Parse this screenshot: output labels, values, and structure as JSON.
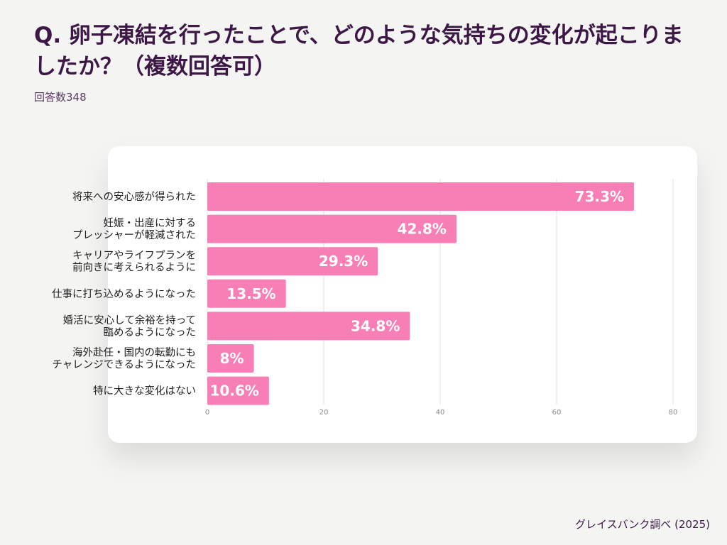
{
  "header": {
    "title": "Q. 卵子凍結を行ったことで、どのような気持ちの変化が起こりましたか？（複数回答可）",
    "respondents": "回答数348"
  },
  "footer": {
    "source": "グレイスバンク調べ (2025)"
  },
  "colors": {
    "bar": "#f77fb6",
    "title": "#3d1846",
    "grid": "#e2e2e2",
    "value_label": "#ffffff"
  },
  "chart_data": {
    "type": "bar",
    "orientation": "horizontal",
    "title": "",
    "xlabel": "",
    "ylabel": "",
    "categories": [
      [
        "将来への安心感が得られた"
      ],
      [
        "妊娠・出産に対する",
        "プレッシャーが軽減された"
      ],
      [
        "キャリアやライフプランを",
        "前向きに考えられるように"
      ],
      [
        "仕事に打ち込めるようになった"
      ],
      [
        "婚活に安心して余裕を持って",
        "臨めるようになった"
      ],
      [
        "海外赴任・国内の転勤にも",
        "チャレンジできるようになった"
      ],
      [
        "特に大きな変化はない"
      ]
    ],
    "values": [
      73.3,
      42.8,
      29.3,
      13.5,
      34.8,
      8,
      10.6
    ],
    "value_labels": [
      "73.3%",
      "42.8%",
      "29.3%",
      "13.5%",
      "34.8%",
      "8%",
      "10.6%"
    ],
    "xlim": [
      0,
      80
    ],
    "xticks": [
      0,
      20,
      40,
      60,
      80
    ],
    "grid": true
  }
}
